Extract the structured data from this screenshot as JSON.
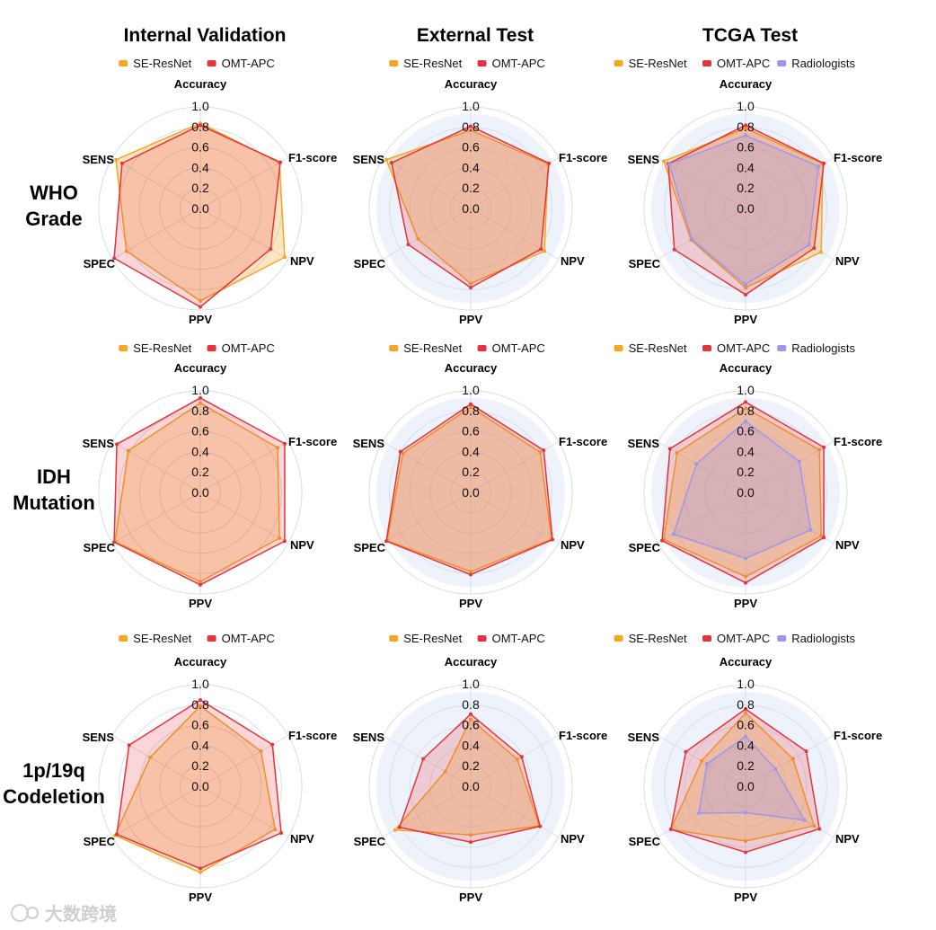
{
  "column_titles": [
    "Internal Validation",
    "External Test",
    "TCGA Test"
  ],
  "row_titles": [
    [
      "WHO",
      "Grade"
    ],
    [
      "IDH",
      "Mutation"
    ],
    [
      "1p/19q",
      "Codeletion"
    ]
  ],
  "watermark": "大数跨境",
  "colors": {
    "SE-ResNet": "#f5a623",
    "OMT-APC": "#e5343a",
    "Radiologists": "#9b98ee",
    "grid": "#d9dde8",
    "band": "#eef2fb"
  },
  "chart_data": [
    {
      "type": "radar",
      "title": "Internal Validation - WHO Grade",
      "axes": [
        "Accuracy",
        "F1-score",
        "NPV",
        "PPV",
        "SPEC",
        "SENS"
      ],
      "ticks": [
        "0.0",
        "0.2",
        "0.4",
        "0.6",
        "0.8",
        "1.0"
      ],
      "rlim": [
        0,
        1
      ],
      "legend": "top",
      "series": [
        {
          "name": "SE-ResNet",
          "values": [
            0.84,
            0.9,
            0.96,
            0.91,
            0.84,
            0.96
          ]
        },
        {
          "name": "OMT-APC",
          "values": [
            0.82,
            0.91,
            0.8,
            0.97,
            0.98,
            0.89
          ]
        }
      ]
    },
    {
      "type": "radar",
      "title": "External Test - WHO Grade",
      "axes": [
        "Accuracy",
        "F1-score",
        "NPV",
        "PPV",
        "SPEC",
        "SENS"
      ],
      "ticks": [
        "0.0",
        "0.2",
        "0.4",
        "0.6",
        "0.8",
        "1.0"
      ],
      "rlim": [
        0,
        1
      ],
      "legend": "top",
      "series": [
        {
          "name": "SE-ResNet",
          "values": [
            0.77,
            0.88,
            0.84,
            0.74,
            0.6,
            0.96
          ]
        },
        {
          "name": "OMT-APC",
          "values": [
            0.81,
            0.89,
            0.8,
            0.78,
            0.71,
            0.9
          ]
        }
      ]
    },
    {
      "type": "radar",
      "title": "TCGA Test - WHO Grade",
      "axes": [
        "Accuracy",
        "F1-score",
        "NPV",
        "PPV",
        "SPEC",
        "SENS"
      ],
      "ticks": [
        "0.0",
        "0.2",
        "0.4",
        "0.6",
        "0.8",
        "1.0"
      ],
      "rlim": [
        0,
        1
      ],
      "legend": "top",
      "series": [
        {
          "name": "SE-ResNet",
          "values": [
            0.79,
            0.88,
            0.86,
            0.78,
            0.62,
            0.93
          ]
        },
        {
          "name": "OMT-APC",
          "values": [
            0.82,
            0.89,
            0.78,
            0.85,
            0.81,
            0.88
          ]
        },
        {
          "name": "Radiologists",
          "values": [
            0.72,
            0.83,
            0.72,
            0.75,
            0.61,
            0.87
          ]
        }
      ]
    },
    {
      "type": "radar",
      "title": "Internal Validation - IDH Mutation",
      "axes": [
        "Accuracy",
        "F1-score",
        "NPV",
        "PPV",
        "SPEC",
        "SENS"
      ],
      "ticks": [
        "0.0",
        "0.2",
        "0.4",
        "0.6",
        "0.8",
        "1.0"
      ],
      "rlim": [
        0,
        1
      ],
      "legend": "top",
      "series": [
        {
          "name": "SE-ResNet",
          "values": [
            0.88,
            0.88,
            0.9,
            0.88,
            0.97,
            0.82
          ]
        },
        {
          "name": "OMT-APC",
          "values": [
            0.93,
            0.96,
            0.96,
            0.91,
            0.98,
            0.95
          ]
        }
      ]
    },
    {
      "type": "radar",
      "title": "External Test - IDH Mutation",
      "axes": [
        "Accuracy",
        "F1-score",
        "NPV",
        "PPV",
        "SPEC",
        "SENS"
      ],
      "ticks": [
        "0.0",
        "0.2",
        "0.4",
        "0.6",
        "0.8",
        "1.0"
      ],
      "rlim": [
        0,
        1
      ],
      "legend": "top",
      "series": [
        {
          "name": "SE-ResNet",
          "values": [
            0.84,
            0.79,
            0.92,
            0.78,
            0.95,
            0.77
          ]
        },
        {
          "name": "OMT-APC",
          "values": [
            0.87,
            0.83,
            0.93,
            0.81,
            0.96,
            0.8
          ]
        }
      ]
    },
    {
      "type": "radar",
      "title": "TCGA Test - IDH Mutation",
      "axes": [
        "Accuracy",
        "F1-score",
        "NPV",
        "PPV",
        "SPEC",
        "SENS"
      ],
      "ticks": [
        "0.0",
        "0.2",
        "0.4",
        "0.6",
        "0.8",
        "1.0"
      ],
      "rlim": [
        0,
        1
      ],
      "legend": "top",
      "series": [
        {
          "name": "SE-ResNet",
          "values": [
            0.83,
            0.84,
            0.86,
            0.83,
            0.93,
            0.78
          ]
        },
        {
          "name": "OMT-APC",
          "values": [
            0.89,
            0.89,
            0.89,
            0.89,
            0.95,
            0.86
          ]
        },
        {
          "name": "Radiologists",
          "values": [
            0.7,
            0.61,
            0.74,
            0.65,
            0.82,
            0.56
          ]
        }
      ]
    },
    {
      "type": "radar",
      "title": "Internal Validation - 1p/19q Codeletion",
      "axes": [
        "Accuracy",
        "F1-score",
        "NPV",
        "PPV",
        "SPEC",
        "SENS"
      ],
      "ticks": [
        "0.0",
        "0.2",
        "0.4",
        "0.6",
        "0.8",
        "1.0"
      ],
      "rlim": [
        0,
        1
      ],
      "legend": "top",
      "series": [
        {
          "name": "SE-ResNet",
          "values": [
            0.79,
            0.69,
            0.85,
            0.85,
            0.97,
            0.57
          ]
        },
        {
          "name": "OMT-APC",
          "values": [
            0.85,
            0.82,
            0.92,
            0.81,
            0.95,
            0.81
          ]
        }
      ]
    },
    {
      "type": "radar",
      "title": "External Test - 1p/19q Codeletion",
      "axes": [
        "Accuracy",
        "F1-score",
        "NPV",
        "PPV",
        "SPEC",
        "SENS"
      ],
      "ticks": [
        "0.0",
        "0.2",
        "0.4",
        "0.6",
        "0.8",
        "1.0"
      ],
      "rlim": [
        0,
        1
      ],
      "legend": "top",
      "series": [
        {
          "name": "SE-ResNet",
          "values": [
            0.66,
            0.53,
            0.78,
            0.48,
            0.86,
            0.29
          ]
        },
        {
          "name": "OMT-APC",
          "values": [
            0.71,
            0.58,
            0.79,
            0.55,
            0.81,
            0.54
          ]
        }
      ]
    },
    {
      "type": "radar",
      "title": "TCGA Test - 1p/19q Codeletion",
      "axes": [
        "Accuracy",
        "F1-score",
        "NPV",
        "PPV",
        "SPEC",
        "SENS"
      ],
      "ticks": [
        "0.0",
        "0.2",
        "0.4",
        "0.6",
        "0.8",
        "1.0"
      ],
      "rlim": [
        0,
        1
      ],
      "legend": "top",
      "series": [
        {
          "name": "SE-ResNet",
          "values": [
            0.72,
            0.54,
            0.78,
            0.54,
            0.85,
            0.5
          ]
        },
        {
          "name": "OMT-APC",
          "values": [
            0.76,
            0.69,
            0.84,
            0.65,
            0.85,
            0.68
          ]
        },
        {
          "name": "Radiologists",
          "values": [
            0.49,
            0.34,
            0.67,
            0.26,
            0.53,
            0.44
          ]
        }
      ]
    }
  ]
}
